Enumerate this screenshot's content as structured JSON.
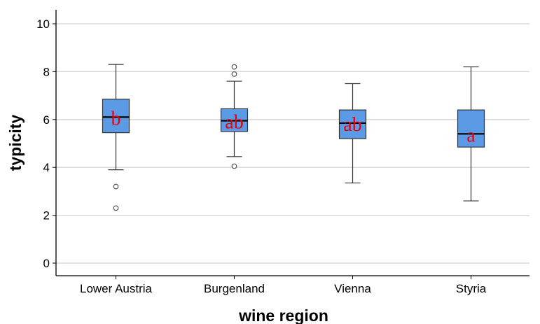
{
  "chart_data": {
    "type": "boxplot",
    "xlabel": "wine region",
    "ylabel": "typicity",
    "ylim": [
      0,
      10
    ],
    "yticks": [
      0,
      2,
      4,
      6,
      8,
      10
    ],
    "grid": true,
    "box_color": "#5b9be5",
    "letter_color": "#e8000b",
    "categories": [
      "Lower Austria",
      "Burgenland",
      "Vienna",
      "Styria"
    ],
    "boxes": [
      {
        "category": "Lower Austria",
        "whisker_low": 3.9,
        "q1": 5.45,
        "median": 6.1,
        "q3": 6.85,
        "whisker_high": 8.3,
        "outliers": [
          3.2,
          2.3
        ],
        "letter": "b"
      },
      {
        "category": "Burgenland",
        "whisker_low": 4.45,
        "q1": 5.5,
        "median": 5.95,
        "q3": 6.45,
        "whisker_high": 7.6,
        "outliers": [
          8.2,
          7.9,
          4.05
        ],
        "letter": "ab"
      },
      {
        "category": "Vienna",
        "whisker_low": 3.35,
        "q1": 5.2,
        "median": 5.85,
        "q3": 6.4,
        "whisker_high": 7.5,
        "outliers": [],
        "letter": "ab"
      },
      {
        "category": "Styria",
        "whisker_low": 2.6,
        "q1": 4.85,
        "median": 5.4,
        "q3": 6.4,
        "whisker_high": 8.2,
        "outliers": [],
        "letter": "a"
      }
    ]
  }
}
